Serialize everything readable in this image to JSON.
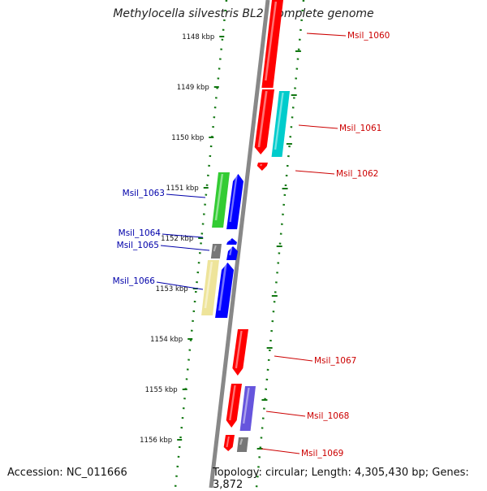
{
  "title": "Methylocella silvestris BL2, complete genome",
  "accession": "Accession: NC_011666",
  "summary": "Topology: circular; Length: 4,305,430 bp; Genes: 3,872",
  "ruler": {
    "ticks": [
      "1148 kbp",
      "1149 kbp",
      "1150 kbp",
      "1151 kbp",
      "1152 kbp",
      "1153 kbp",
      "1154 kbp",
      "1155 kbp",
      "1156 kbp"
    ]
  },
  "colors": {
    "red": "#ff0000",
    "cyan": "#00cccc",
    "green": "#33cc33",
    "blue": "#0000ff",
    "gray": "#777777",
    "khaki": "#eee49a",
    "slate": "#6655dd",
    "ruler": "#117711",
    "label_forward": "#cc0000",
    "label_reverse": "#0000aa"
  },
  "genes": [
    {
      "name": "Msil_1060",
      "strand": "+",
      "color": "red"
    },
    {
      "name": "Msil_1061",
      "strand": "+",
      "color": "red"
    },
    {
      "name": "Msil_1062",
      "strand": "+",
      "color": "red"
    },
    {
      "name": "Msil_1063",
      "strand": "-",
      "color": "green"
    },
    {
      "name": "Msil_1064",
      "strand": "-",
      "color": "blue"
    },
    {
      "name": "Msil_1065",
      "strand": "-",
      "color": "gray"
    },
    {
      "name": "Msil_1066",
      "strand": "-",
      "color": "khaki"
    },
    {
      "name": "Msil_1067",
      "strand": "+",
      "color": "red"
    },
    {
      "name": "Msil_1068",
      "strand": "+",
      "color": "red"
    },
    {
      "name": "Msil_1069",
      "strand": "+",
      "color": "red"
    }
  ]
}
